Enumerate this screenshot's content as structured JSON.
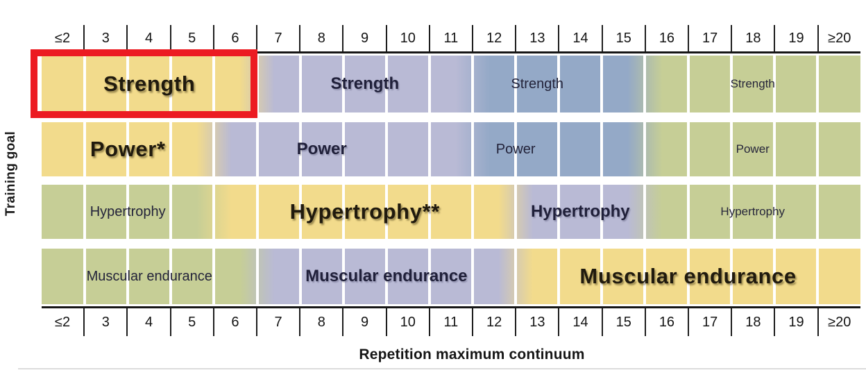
{
  "figure": {
    "y_axis_label": "Training goal",
    "x_axis_label": "Repetition maximum continuum"
  },
  "palette": {
    "yellow": "#f2db8c",
    "lavender": "#b9bad5",
    "blue": "#94a9c7",
    "green": "#c6ce96",
    "highlight_red": "#ec1b22",
    "axis_black": "#161616"
  },
  "chart_data": {
    "type": "heatmap",
    "xlabel": "Repetition maximum continuum",
    "ylabel": "Training goal",
    "x_categories": [
      "≤2",
      "3",
      "4",
      "5",
      "6",
      "7",
      "8",
      "9",
      "10",
      "11",
      "12",
      "13",
      "14",
      "15",
      "16",
      "17",
      "18",
      "19",
      "≥20"
    ],
    "y_categories": [
      "Strength",
      "Power",
      "Hypertrophy",
      "Muscular endurance"
    ],
    "tier_colors": {
      "yellow": "#f2db8c",
      "lavender": "#b9bad5",
      "blue": "#94a9c7",
      "green": "#c6ce96"
    },
    "legend": "none",
    "grid": "white column dividers at every RM boundary",
    "rows": [
      {
        "goal": "Strength",
        "segments": [
          {
            "x_start": "≤2",
            "x_end": "6",
            "color": "yellow",
            "label": "Strength",
            "text_style": "xl-bold",
            "highlighted": true
          },
          {
            "x_start": "7",
            "x_end": "11",
            "color": "lavender",
            "label": "Strength",
            "text_style": "lg-bold"
          },
          {
            "x_start": "12",
            "x_end": "15",
            "color": "blue",
            "label": "Strength",
            "text_style": "md-regular",
            "label_x_start": "12",
            "label_x_end": "14"
          },
          {
            "x_start": "16",
            "x_end": "≥20",
            "color": "green",
            "label": "Strength",
            "text_style": "sm-regular"
          }
        ]
      },
      {
        "goal": "Power",
        "segments": [
          {
            "x_start": "≤2",
            "x_end": "5",
            "color": "yellow",
            "label": "Power*",
            "text_style": "xl-bold"
          },
          {
            "x_start": "6",
            "x_end": "11",
            "color": "lavender",
            "label": "Power",
            "text_style": "lg-bold",
            "label_x_start": "6",
            "label_x_end": "10"
          },
          {
            "x_start": "12",
            "x_end": "15",
            "color": "blue",
            "label": "Power",
            "text_style": "md-regular",
            "label_x_start": "12",
            "label_x_end": "13"
          },
          {
            "x_start": "16",
            "x_end": "≥20",
            "color": "green",
            "label": "Power",
            "text_style": "sm-regular"
          }
        ]
      },
      {
        "goal": "Hypertrophy",
        "segments": [
          {
            "x_start": "≤2",
            "x_end": "5",
            "color": "green",
            "label": "Hypertrophy",
            "text_style": "md-regular"
          },
          {
            "x_start": "6",
            "x_end": "12",
            "color": "yellow",
            "label": "Hypertrophy**",
            "text_style": "xl-bold"
          },
          {
            "x_start": "13",
            "x_end": "15",
            "color": "lavender",
            "label": "Hypertrophy",
            "text_style": "lg-bold"
          },
          {
            "x_start": "16",
            "x_end": "≥20",
            "color": "green",
            "label": "Hypertrophy",
            "text_style": "sm-regular"
          }
        ]
      },
      {
        "goal": "Muscular endurance",
        "segments": [
          {
            "x_start": "≤2",
            "x_end": "6",
            "color": "green",
            "label": "Muscular endurance",
            "text_style": "md-regular"
          },
          {
            "x_start": "7",
            "x_end": "12",
            "color": "lavender",
            "label": "Muscular endurance",
            "text_style": "lg-bold"
          },
          {
            "x_start": "13",
            "x_end": "≥20",
            "color": "yellow",
            "label": "Muscular endurance",
            "text_style": "xl-bold"
          }
        ]
      }
    ],
    "highlight_box": {
      "row": "Strength",
      "x_start": "≤2",
      "x_end": "6",
      "border_color": "#ec1b22"
    }
  }
}
